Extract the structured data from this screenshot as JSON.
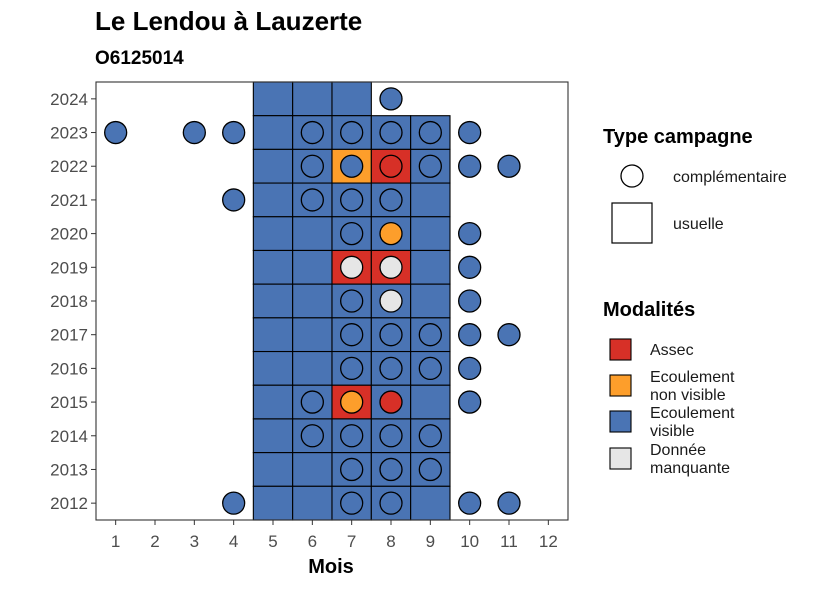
{
  "chart_data": {
    "type": "heatmap",
    "title": "Le Lendou à Lauzerte",
    "subtitle": "O6125014",
    "xlabel": "Mois",
    "ylabel": "",
    "x_ticks": [
      "1",
      "2",
      "3",
      "4",
      "5",
      "6",
      "7",
      "8",
      "9",
      "10",
      "11",
      "12"
    ],
    "y_ticks": [
      "2012",
      "2013",
      "2014",
      "2015",
      "2016",
      "2017",
      "2018",
      "2019",
      "2020",
      "2021",
      "2022",
      "2023",
      "2024"
    ],
    "xlim": [
      0.5,
      12.5
    ],
    "ylim": [
      2011.5,
      2024.5
    ],
    "grid": false,
    "legend_position": "right",
    "colors": {
      "Assec": "#d73027",
      "Ecoulement non visible": "#fd9e2b",
      "Ecoulement visible": "#4a74b4",
      "Donnée manquante": "#e6e6e6"
    },
    "legend_type": {
      "title": "Type campagne",
      "entries": [
        {
          "label": "complémentaire",
          "shape": "circle"
        },
        {
          "label": "usuelle",
          "shape": "square"
        }
      ]
    },
    "legend_modalites": {
      "title": "Modalités",
      "entries": [
        {
          "key": "Assec",
          "lines": [
            "Assec"
          ]
        },
        {
          "key": "Ecoulement non visible",
          "lines": [
            "Ecoulement",
            "non visible"
          ]
        },
        {
          "key": "Ecoulement visible",
          "lines": [
            "Ecoulement",
            "visible"
          ]
        },
        {
          "key": "Donnée manquante",
          "lines": [
            "Donnée",
            "manquante"
          ]
        }
      ]
    },
    "usuelle": [
      {
        "year": 2024,
        "month": 5,
        "m": "Ecoulement visible"
      },
      {
        "year": 2024,
        "month": 6,
        "m": "Ecoulement visible"
      },
      {
        "year": 2024,
        "month": 7,
        "m": "Ecoulement visible"
      },
      {
        "year": 2023,
        "month": 5,
        "m": "Ecoulement visible"
      },
      {
        "year": 2023,
        "month": 6,
        "m": "Ecoulement visible"
      },
      {
        "year": 2023,
        "month": 7,
        "m": "Ecoulement visible"
      },
      {
        "year": 2023,
        "month": 8,
        "m": "Ecoulement visible"
      },
      {
        "year": 2023,
        "month": 9,
        "m": "Ecoulement visible"
      },
      {
        "year": 2022,
        "month": 5,
        "m": "Ecoulement visible"
      },
      {
        "year": 2022,
        "month": 6,
        "m": "Ecoulement visible"
      },
      {
        "year": 2022,
        "month": 7,
        "m": "Ecoulement non visible"
      },
      {
        "year": 2022,
        "month": 8,
        "m": "Assec"
      },
      {
        "year": 2022,
        "month": 9,
        "m": "Ecoulement visible"
      },
      {
        "year": 2021,
        "month": 5,
        "m": "Ecoulement visible"
      },
      {
        "year": 2021,
        "month": 6,
        "m": "Ecoulement visible"
      },
      {
        "year": 2021,
        "month": 7,
        "m": "Ecoulement visible"
      },
      {
        "year": 2021,
        "month": 8,
        "m": "Ecoulement visible"
      },
      {
        "year": 2021,
        "month": 9,
        "m": "Ecoulement visible"
      },
      {
        "year": 2020,
        "month": 5,
        "m": "Ecoulement visible"
      },
      {
        "year": 2020,
        "month": 6,
        "m": "Ecoulement visible"
      },
      {
        "year": 2020,
        "month": 7,
        "m": "Ecoulement visible"
      },
      {
        "year": 2020,
        "month": 8,
        "m": "Ecoulement visible"
      },
      {
        "year": 2020,
        "month": 9,
        "m": "Ecoulement visible"
      },
      {
        "year": 2019,
        "month": 5,
        "m": "Ecoulement visible"
      },
      {
        "year": 2019,
        "month": 6,
        "m": "Ecoulement visible"
      },
      {
        "year": 2019,
        "month": 7,
        "m": "Assec"
      },
      {
        "year": 2019,
        "month": 8,
        "m": "Assec"
      },
      {
        "year": 2019,
        "month": 9,
        "m": "Ecoulement visible"
      },
      {
        "year": 2018,
        "month": 5,
        "m": "Ecoulement visible"
      },
      {
        "year": 2018,
        "month": 6,
        "m": "Ecoulement visible"
      },
      {
        "year": 2018,
        "month": 7,
        "m": "Ecoulement visible"
      },
      {
        "year": 2018,
        "month": 8,
        "m": "Ecoulement visible"
      },
      {
        "year": 2018,
        "month": 9,
        "m": "Ecoulement visible"
      },
      {
        "year": 2017,
        "month": 5,
        "m": "Ecoulement visible"
      },
      {
        "year": 2017,
        "month": 6,
        "m": "Ecoulement visible"
      },
      {
        "year": 2017,
        "month": 7,
        "m": "Ecoulement visible"
      },
      {
        "year": 2017,
        "month": 8,
        "m": "Ecoulement visible"
      },
      {
        "year": 2017,
        "month": 9,
        "m": "Ecoulement visible"
      },
      {
        "year": 2016,
        "month": 5,
        "m": "Ecoulement visible"
      },
      {
        "year": 2016,
        "month": 6,
        "m": "Ecoulement visible"
      },
      {
        "year": 2016,
        "month": 7,
        "m": "Ecoulement visible"
      },
      {
        "year": 2016,
        "month": 8,
        "m": "Ecoulement visible"
      },
      {
        "year": 2016,
        "month": 9,
        "m": "Ecoulement visible"
      },
      {
        "year": 2015,
        "month": 5,
        "m": "Ecoulement visible"
      },
      {
        "year": 2015,
        "month": 6,
        "m": "Ecoulement visible"
      },
      {
        "year": 2015,
        "month": 7,
        "m": "Assec"
      },
      {
        "year": 2015,
        "month": 8,
        "m": "Ecoulement visible"
      },
      {
        "year": 2015,
        "month": 9,
        "m": "Ecoulement visible"
      },
      {
        "year": 2014,
        "month": 5,
        "m": "Ecoulement visible"
      },
      {
        "year": 2014,
        "month": 6,
        "m": "Ecoulement visible"
      },
      {
        "year": 2014,
        "month": 7,
        "m": "Ecoulement visible"
      },
      {
        "year": 2014,
        "month": 8,
        "m": "Ecoulement visible"
      },
      {
        "year": 2014,
        "month": 9,
        "m": "Ecoulement visible"
      },
      {
        "year": 2013,
        "month": 5,
        "m": "Ecoulement visible"
      },
      {
        "year": 2013,
        "month": 6,
        "m": "Ecoulement visible"
      },
      {
        "year": 2013,
        "month": 7,
        "m": "Ecoulement visible"
      },
      {
        "year": 2013,
        "month": 8,
        "m": "Ecoulement visible"
      },
      {
        "year": 2013,
        "month": 9,
        "m": "Ecoulement visible"
      },
      {
        "year": 2012,
        "month": 5,
        "m": "Ecoulement visible"
      },
      {
        "year": 2012,
        "month": 6,
        "m": "Ecoulement visible"
      },
      {
        "year": 2012,
        "month": 7,
        "m": "Ecoulement visible"
      },
      {
        "year": 2012,
        "month": 8,
        "m": "Ecoulement visible"
      },
      {
        "year": 2012,
        "month": 9,
        "m": "Ecoulement visible"
      }
    ],
    "complementaire": [
      {
        "year": 2024,
        "month": 8,
        "m": "Ecoulement visible"
      },
      {
        "year": 2023,
        "month": 1,
        "m": "Ecoulement visible"
      },
      {
        "year": 2023,
        "month": 3,
        "m": "Ecoulement visible"
      },
      {
        "year": 2023,
        "month": 4,
        "m": "Ecoulement visible"
      },
      {
        "year": 2023,
        "month": 6,
        "m": "Ecoulement visible"
      },
      {
        "year": 2023,
        "month": 7,
        "m": "Ecoulement visible"
      },
      {
        "year": 2023,
        "month": 8,
        "m": "Ecoulement visible"
      },
      {
        "year": 2023,
        "month": 9,
        "m": "Ecoulement visible"
      },
      {
        "year": 2023,
        "month": 10,
        "m": "Ecoulement visible"
      },
      {
        "year": 2022,
        "month": 6,
        "m": "Ecoulement visible"
      },
      {
        "year": 2022,
        "month": 7,
        "m": "Ecoulement visible"
      },
      {
        "year": 2022,
        "month": 8,
        "m": "Assec"
      },
      {
        "year": 2022,
        "month": 9,
        "m": "Ecoulement visible"
      },
      {
        "year": 2022,
        "month": 10,
        "m": "Ecoulement visible"
      },
      {
        "year": 2022,
        "month": 11,
        "m": "Ecoulement visible"
      },
      {
        "year": 2021,
        "month": 4,
        "m": "Ecoulement visible"
      },
      {
        "year": 2021,
        "month": 6,
        "m": "Ecoulement visible"
      },
      {
        "year": 2021,
        "month": 7,
        "m": "Ecoulement visible"
      },
      {
        "year": 2021,
        "month": 8,
        "m": "Ecoulement visible"
      },
      {
        "year": 2020,
        "month": 7,
        "m": "Ecoulement visible"
      },
      {
        "year": 2020,
        "month": 8,
        "m": "Ecoulement non visible"
      },
      {
        "year": 2020,
        "month": 10,
        "m": "Ecoulement visible"
      },
      {
        "year": 2019,
        "month": 7,
        "m": "Donnée manquante"
      },
      {
        "year": 2019,
        "month": 8,
        "m": "Donnée manquante"
      },
      {
        "year": 2019,
        "month": 10,
        "m": "Ecoulement visible"
      },
      {
        "year": 2018,
        "month": 7,
        "m": "Ecoulement visible"
      },
      {
        "year": 2018,
        "month": 8,
        "m": "Donnée manquante"
      },
      {
        "year": 2018,
        "month": 10,
        "m": "Ecoulement visible"
      },
      {
        "year": 2017,
        "month": 7,
        "m": "Ecoulement visible"
      },
      {
        "year": 2017,
        "month": 8,
        "m": "Ecoulement visible"
      },
      {
        "year": 2017,
        "month": 9,
        "m": "Ecoulement visible"
      },
      {
        "year": 2017,
        "month": 10,
        "m": "Ecoulement visible"
      },
      {
        "year": 2017,
        "month": 11,
        "m": "Ecoulement visible"
      },
      {
        "year": 2016,
        "month": 7,
        "m": "Ecoulement visible"
      },
      {
        "year": 2016,
        "month": 8,
        "m": "Ecoulement visible"
      },
      {
        "year": 2016,
        "month": 9,
        "m": "Ecoulement visible"
      },
      {
        "year": 2016,
        "month": 10,
        "m": "Ecoulement visible"
      },
      {
        "year": 2015,
        "month": 6,
        "m": "Ecoulement visible"
      },
      {
        "year": 2015,
        "month": 7,
        "m": "Ecoulement non visible"
      },
      {
        "year": 2015,
        "month": 8,
        "m": "Assec"
      },
      {
        "year": 2015,
        "month": 10,
        "m": "Ecoulement visible"
      },
      {
        "year": 2014,
        "month": 6,
        "m": "Ecoulement visible"
      },
      {
        "year": 2014,
        "month": 7,
        "m": "Ecoulement visible"
      },
      {
        "year": 2014,
        "month": 8,
        "m": "Ecoulement visible"
      },
      {
        "year": 2014,
        "month": 9,
        "m": "Ecoulement visible"
      },
      {
        "year": 2013,
        "month": 7,
        "m": "Ecoulement visible"
      },
      {
        "year": 2013,
        "month": 8,
        "m": "Ecoulement visible"
      },
      {
        "year": 2013,
        "month": 9,
        "m": "Ecoulement visible"
      },
      {
        "year": 2012,
        "month": 4,
        "m": "Ecoulement visible"
      },
      {
        "year": 2012,
        "month": 7,
        "m": "Ecoulement visible"
      },
      {
        "year": 2012,
        "month": 8,
        "m": "Ecoulement visible"
      },
      {
        "year": 2012,
        "month": 10,
        "m": "Ecoulement visible"
      },
      {
        "year": 2012,
        "month": 11,
        "m": "Ecoulement visible"
      }
    ]
  }
}
